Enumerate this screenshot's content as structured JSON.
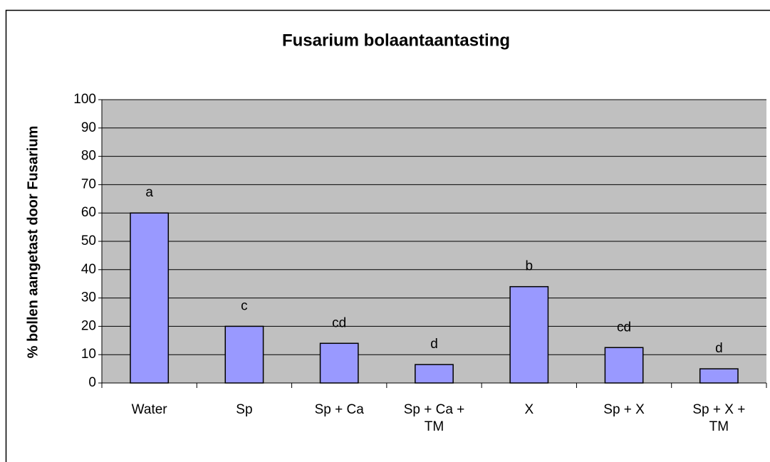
{
  "chart_data": {
    "type": "bar",
    "title": "Fusarium bolaantaantasting",
    "y_label": "% bollen aangetast door Fusarium",
    "categories": [
      "Water",
      "Sp",
      "Sp + Ca",
      "Sp + Ca + TM",
      "X",
      "Sp + X",
      "Sp + X + TM"
    ],
    "values": [
      60,
      20,
      14,
      6.5,
      34,
      12.5,
      5
    ],
    "annotations": [
      "a",
      "c",
      "cd",
      "d",
      "b",
      "cd",
      "d"
    ],
    "color": "#9999ff",
    "ylim": [
      0,
      100
    ],
    "yticks": [
      0,
      10,
      20,
      30,
      40,
      50,
      60,
      70,
      80,
      90,
      100
    ],
    "grid": true
  }
}
